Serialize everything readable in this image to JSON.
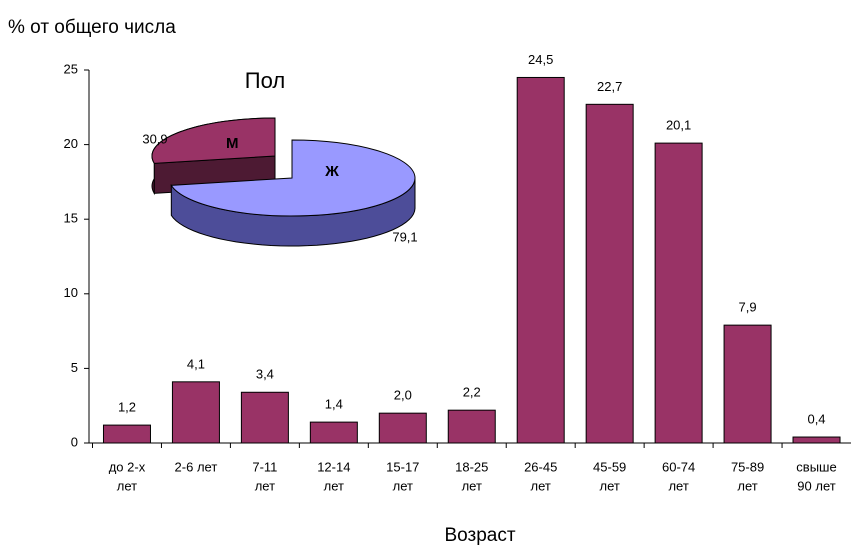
{
  "chart_data": [
    {
      "type": "bar",
      "y_label": "% от общего числа",
      "x_label": "Возраст",
      "categories": [
        [
          "до 2-х",
          "лет"
        ],
        [
          "2-6 лет"
        ],
        [
          "7-11",
          "лет"
        ],
        [
          "12-14",
          "лет"
        ],
        [
          "15-17",
          "лет"
        ],
        [
          "18-25",
          "лет"
        ],
        [
          "26-45",
          "лет"
        ],
        [
          "45-59",
          "лет"
        ],
        [
          "60-74",
          "лет"
        ],
        [
          "75-89",
          "лет"
        ],
        [
          "свыше",
          "90 лет"
        ]
      ],
      "values": [
        1.2,
        4.1,
        3.4,
        1.4,
        2.0,
        2.2,
        24.5,
        22.7,
        20.1,
        7.9,
        0.4
      ],
      "value_labels": [
        "1,2",
        "4,1",
        "3,4",
        "1,4",
        "2,0",
        "2,2",
        "24,5",
        "22,7",
        "20,1",
        "7,9",
        "0,4"
      ],
      "color": "#993366",
      "ylim": [
        0,
        25
      ],
      "yticks": [
        0,
        5,
        10,
        15,
        20,
        25
      ]
    },
    {
      "type": "pie",
      "title": "Пол",
      "categories": [
        "Ж",
        "М"
      ],
      "values": [
        79.1,
        30.9
      ],
      "value_labels": [
        "79,1",
        "30,9"
      ],
      "colors": [
        "#9999ff",
        "#993366"
      ]
    }
  ]
}
